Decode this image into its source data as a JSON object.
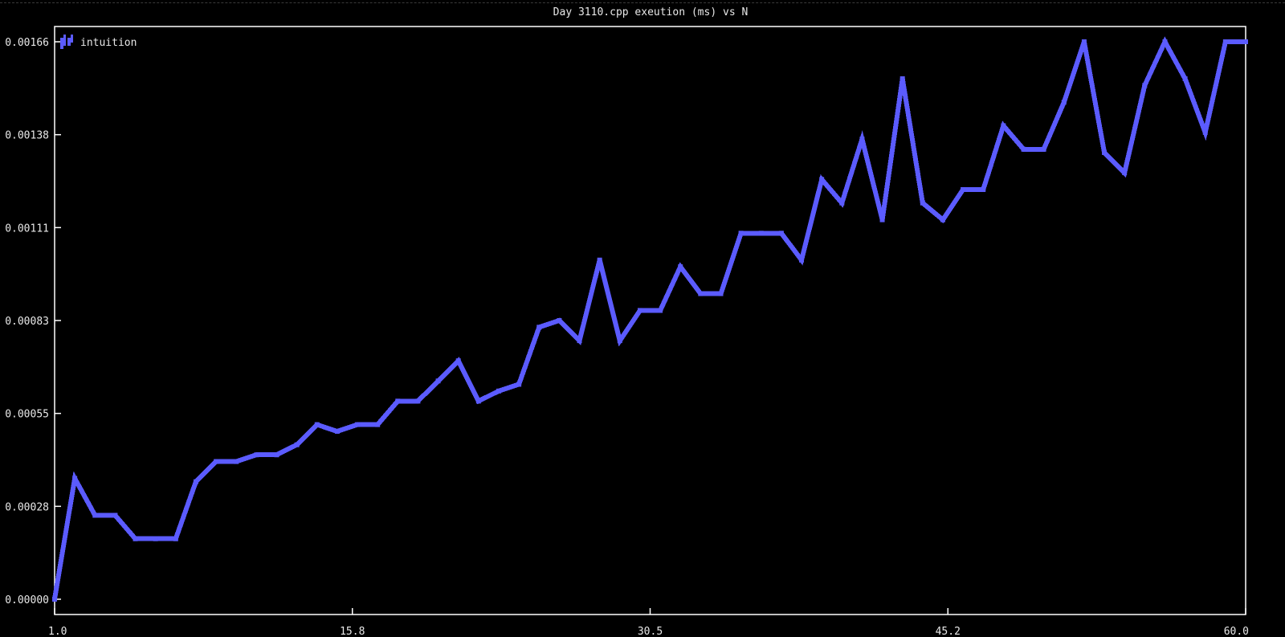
{
  "chart_data": {
    "type": "line",
    "title": "Day 3110.cpp exeution (ms) vs N",
    "xlabel": "",
    "ylabel": "",
    "xlim": [
      1.0,
      60.0
    ],
    "ylim": [
      0.0,
      0.00166
    ],
    "x_ticks": [
      "1.0",
      "15.8",
      "30.5",
      "45.2",
      "60.0"
    ],
    "y_ticks": [
      "0.00000",
      "0.00028",
      "0.00055",
      "0.00083",
      "0.00111",
      "0.00138",
      "0.00166"
    ],
    "legend_position": "top-left",
    "grid": false,
    "colors": {
      "series": "#5b5bff",
      "background": "#000000",
      "axis": "#ffffff",
      "text": "#e8e8e8"
    },
    "series": [
      {
        "name": "intuition",
        "x": [
          1,
          2,
          3,
          4,
          5,
          6,
          7,
          8,
          9,
          10,
          11,
          12,
          13,
          14,
          15,
          16,
          17,
          18,
          19,
          20,
          21,
          22,
          23,
          24,
          25,
          26,
          27,
          28,
          29,
          30,
          31,
          32,
          33,
          34,
          35,
          36,
          37,
          38,
          39,
          40,
          41,
          42,
          43,
          44,
          45,
          46,
          47,
          48,
          49,
          50,
          51,
          52,
          53,
          54,
          55,
          56,
          57,
          58,
          59,
          60
        ],
        "y": [
          0.0,
          0.00036,
          0.00025,
          0.00025,
          0.00018,
          0.00018,
          0.00018,
          0.00035,
          0.00041,
          0.00041,
          0.00043,
          0.00043,
          0.00046,
          0.00052,
          0.0005,
          0.00052,
          0.00052,
          0.00059,
          0.00059,
          0.00065,
          0.00071,
          0.00059,
          0.00062,
          0.00064,
          0.00081,
          0.00083,
          0.00077,
          0.00101,
          0.00077,
          0.00086,
          0.00086,
          0.00099,
          0.00091,
          0.00091,
          0.00109,
          0.00109,
          0.00109,
          0.00101,
          0.00125,
          0.00118,
          0.00137,
          0.00113,
          0.00155,
          0.00118,
          0.00113,
          0.00122,
          0.00122,
          0.00141,
          0.00134,
          0.00134,
          0.00148,
          0.00166,
          0.00133,
          0.00127,
          0.00153,
          0.00166,
          0.00155,
          0.00139,
          0.00166,
          0.00166
        ]
      }
    ]
  }
}
